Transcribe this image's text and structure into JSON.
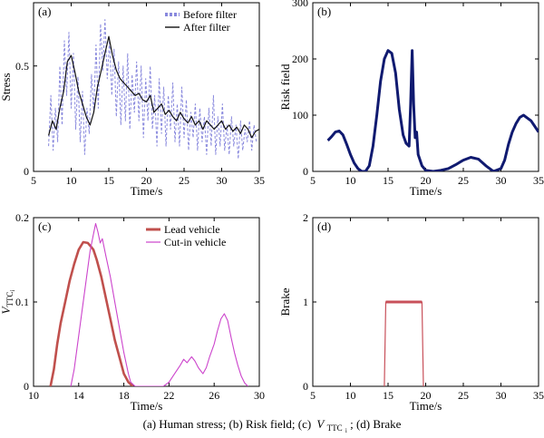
{
  "caption": {
    "a": "(a) Human stress; (b) Risk field; (c)",
    "v": "V",
    "sub": "TTC",
    "subsub": "i",
    "d": "; (d) Brake"
  },
  "colors": {
    "before": "#8888dd",
    "after": "#111111",
    "risk": "#101a70",
    "lead": "#c0504d",
    "cutin": "#cc44cc",
    "brake": "#c8505a"
  },
  "chart_data": [
    {
      "type": "line",
      "panel": "(a)",
      "xlabel": "Time/s",
      "ylabel": "Stress",
      "xlim": [
        5,
        35
      ],
      "ylim": [
        0,
        0.8
      ],
      "xticks": [
        "5",
        "10",
        "15",
        "20",
        "25",
        "30",
        "35"
      ],
      "yticks": [
        "0",
        "0.5"
      ],
      "legend_position": "top-right",
      "series": [
        {
          "name": "Before filter",
          "style": "dashed",
          "x": [
            7.0,
            7.3,
            7.6,
            7.9,
            8.2,
            8.5,
            8.8,
            9.1,
            9.4,
            9.7,
            10.0,
            10.3,
            10.6,
            10.9,
            11.2,
            11.5,
            11.8,
            12.1,
            12.4,
            12.7,
            13.0,
            13.3,
            13.6,
            13.9,
            14.2,
            14.5,
            14.8,
            15.1,
            15.4,
            15.7,
            16.0,
            16.3,
            16.6,
            16.9,
            17.2,
            17.5,
            17.8,
            18.1,
            18.4,
            18.7,
            19.0,
            19.3,
            19.6,
            19.9,
            20.2,
            20.5,
            20.8,
            21.1,
            21.4,
            21.7,
            22.0,
            22.3,
            22.6,
            22.9,
            23.2,
            23.5,
            23.8,
            24.1,
            24.4,
            24.7,
            25.0,
            25.3,
            25.6,
            25.9,
            26.2,
            26.5,
            26.8,
            27.1,
            27.4,
            27.7,
            28.0,
            28.3,
            28.6,
            28.9,
            29.2,
            29.5,
            29.8,
            30.1,
            30.4,
            30.7,
            31.0,
            31.3,
            31.6,
            31.9,
            32.2,
            32.5,
            32.8,
            33.1,
            33.4,
            33.7,
            34.0,
            34.3,
            34.6
          ],
          "values": [
            0.12,
            0.36,
            0.1,
            0.3,
            0.14,
            0.5,
            0.22,
            0.62,
            0.36,
            0.66,
            0.3,
            0.56,
            0.2,
            0.45,
            0.14,
            0.38,
            0.08,
            0.3,
            0.18,
            0.46,
            0.28,
            0.6,
            0.3,
            0.7,
            0.48,
            0.72,
            0.44,
            0.62,
            0.36,
            0.58,
            0.26,
            0.52,
            0.22,
            0.5,
            0.24,
            0.56,
            0.2,
            0.46,
            0.28,
            0.52,
            0.24,
            0.5,
            0.16,
            0.44,
            0.24,
            0.5,
            0.2,
            0.36,
            0.12,
            0.44,
            0.18,
            0.4,
            0.12,
            0.36,
            0.2,
            0.42,
            0.14,
            0.32,
            0.12,
            0.4,
            0.16,
            0.34,
            0.1,
            0.28,
            0.16,
            0.32,
            0.1,
            0.3,
            0.14,
            0.26,
            0.08,
            0.3,
            0.12,
            0.36,
            0.08,
            0.26,
            0.12,
            0.32,
            0.1,
            0.22,
            0.08,
            0.26,
            0.12,
            0.22,
            0.06,
            0.24,
            0.1,
            0.2,
            0.14,
            0.24,
            0.1,
            0.22,
            0.14
          ]
        },
        {
          "name": "After filter",
          "style": "solid",
          "x": [
            7.0,
            7.5,
            8.0,
            8.5,
            9.0,
            9.5,
            10.0,
            10.5,
            11.0,
            11.5,
            12.0,
            12.5,
            13.0,
            13.5,
            14.0,
            14.5,
            15.0,
            15.5,
            16.0,
            16.5,
            17.0,
            17.5,
            18.0,
            18.5,
            19.0,
            19.5,
            20.0,
            20.5,
            21.0,
            21.5,
            22.0,
            22.5,
            23.0,
            23.5,
            24.0,
            24.5,
            25.0,
            25.5,
            26.0,
            26.5,
            27.0,
            27.5,
            28.0,
            28.5,
            29.0,
            29.5,
            30.0,
            30.5,
            31.0,
            31.5,
            32.0,
            32.5,
            33.0,
            33.5,
            34.0,
            34.5,
            35.0
          ],
          "values": [
            0.17,
            0.24,
            0.2,
            0.3,
            0.38,
            0.52,
            0.55,
            0.47,
            0.38,
            0.32,
            0.26,
            0.22,
            0.28,
            0.4,
            0.48,
            0.56,
            0.64,
            0.55,
            0.48,
            0.44,
            0.42,
            0.4,
            0.38,
            0.36,
            0.37,
            0.34,
            0.33,
            0.36,
            0.28,
            0.3,
            0.32,
            0.27,
            0.29,
            0.26,
            0.24,
            0.28,
            0.25,
            0.23,
            0.26,
            0.22,
            0.24,
            0.2,
            0.24,
            0.22,
            0.2,
            0.22,
            0.24,
            0.2,
            0.22,
            0.19,
            0.21,
            0.18,
            0.22,
            0.2,
            0.16,
            0.19,
            0.2
          ]
        }
      ]
    },
    {
      "type": "line",
      "panel": "(b)",
      "xlabel": "Time/s",
      "ylabel": "Risk field",
      "xlim": [
        5,
        35
      ],
      "ylim": [
        0,
        300
      ],
      "xticks": [
        "5",
        "10",
        "15",
        "20",
        "25",
        "30",
        "35"
      ],
      "yticks": [
        "0",
        "100",
        "200",
        "300"
      ],
      "series": [
        {
          "x": [
            7.0,
            7.5,
            8.0,
            8.5,
            9.0,
            9.5,
            10.0,
            10.5,
            11.0,
            11.5,
            12.0,
            12.5,
            13.0,
            13.5,
            14.0,
            14.5,
            15.0,
            15.5,
            16.0,
            16.5,
            17.0,
            17.4,
            17.8,
            18.0,
            18.2,
            18.4,
            18.6,
            18.8,
            19.0,
            19.5,
            20.0,
            21.0,
            22.0,
            23.0,
            24.0,
            25.0,
            26.0,
            27.0,
            28.0,
            29.0,
            30.0,
            30.5,
            31.0,
            31.5,
            32.0,
            32.5,
            33.0,
            33.5,
            34.0,
            34.5,
            35.0
          ],
          "values": [
            55,
            62,
            70,
            72,
            65,
            48,
            30,
            15,
            5,
            0,
            0,
            10,
            45,
            100,
            160,
            200,
            215,
            210,
            175,
            110,
            65,
            50,
            45,
            120,
            215,
            120,
            60,
            70,
            30,
            10,
            2,
            0,
            2,
            5,
            12,
            20,
            25,
            22,
            10,
            0,
            5,
            20,
            48,
            70,
            85,
            96,
            100,
            95,
            90,
            80,
            70
          ]
        }
      ]
    },
    {
      "type": "line",
      "panel": "(c)",
      "xlabel": "Time/s",
      "ylabel": "V",
      "ylabel_sub": "TTC",
      "ylabel_subsub": "i",
      "xlim": [
        10,
        30
      ],
      "ylim": [
        0,
        0.2
      ],
      "xticks": [
        "10",
        "14",
        "18",
        "22",
        "26",
        "30"
      ],
      "yticks": [
        "0",
        "0.1",
        "0.2"
      ],
      "legend_position": "top-right",
      "series": [
        {
          "name": "Lead vehicle",
          "x": [
            11.5,
            11.8,
            12.1,
            12.4,
            12.8,
            13.2,
            13.6,
            14.0,
            14.4,
            14.8,
            15.0,
            15.3,
            15.6,
            16.0,
            16.4,
            16.8,
            17.2,
            17.6,
            18.0,
            18.4,
            18.8
          ],
          "values": [
            0.0,
            0.02,
            0.05,
            0.075,
            0.1,
            0.125,
            0.145,
            0.162,
            0.171,
            0.17,
            0.167,
            0.162,
            0.15,
            0.13,
            0.105,
            0.08,
            0.055,
            0.035,
            0.015,
            0.005,
            0.0
          ]
        },
        {
          "name": "Cut-in vehicle",
          "x": [
            13.3,
            13.6,
            14.0,
            14.4,
            14.8,
            15.0,
            15.3,
            15.5,
            15.7,
            15.9,
            16.1,
            16.4,
            16.8,
            17.2,
            17.6,
            18.0,
            18.4,
            18.6,
            19.0,
            21.0,
            21.5,
            22.0,
            22.5,
            23.0,
            23.3,
            23.6,
            24.0,
            24.3,
            24.6,
            25.0,
            25.3,
            25.6,
            26.0,
            26.3,
            26.6,
            26.9,
            27.2,
            27.5,
            27.8,
            28.1,
            28.4,
            28.7,
            29.0
          ],
          "values": [
            0.0,
            0.02,
            0.06,
            0.1,
            0.14,
            0.16,
            0.18,
            0.193,
            0.183,
            0.17,
            0.175,
            0.155,
            0.13,
            0.1,
            0.07,
            0.04,
            0.015,
            0.005,
            0.0,
            0.0,
            0.0,
            0.005,
            0.015,
            0.025,
            0.032,
            0.028,
            0.035,
            0.03,
            0.022,
            0.015,
            0.022,
            0.035,
            0.05,
            0.066,
            0.08,
            0.086,
            0.078,
            0.058,
            0.04,
            0.025,
            0.012,
            0.004,
            0.0
          ]
        }
      ]
    },
    {
      "type": "line",
      "panel": "(d)",
      "xlabel": "Time/s",
      "ylabel": "Brake",
      "xlim": [
        5,
        35
      ],
      "ylim": [
        0,
        2
      ],
      "xticks": [
        "5",
        "10",
        "15",
        "20",
        "25",
        "30",
        "35"
      ],
      "yticks": [
        "0",
        "1",
        "2"
      ],
      "series": [
        {
          "x": [
            14.5,
            14.7,
            19.5,
            19.7
          ],
          "values": [
            0,
            1,
            1,
            0
          ]
        }
      ]
    }
  ]
}
